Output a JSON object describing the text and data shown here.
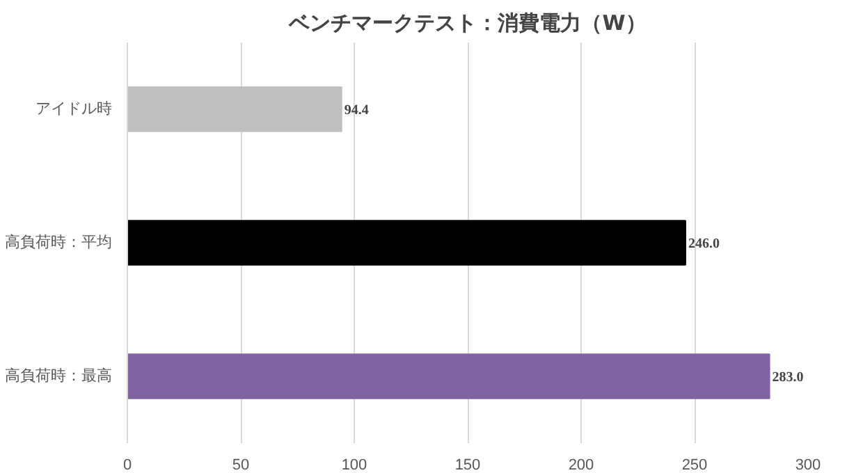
{
  "chart_data": {
    "type": "bar",
    "orientation": "horizontal",
    "title": "ベンチマークテスト：消費電力（W）",
    "categories": [
      "アイドル時",
      "高負荷時：平均",
      "高負荷時：最高"
    ],
    "values": [
      94.4,
      246.0,
      283.0
    ],
    "colors": [
      "#bfbfbf",
      "#000000",
      "#8064a2"
    ],
    "value_labels": [
      "94.4",
      "246.0",
      "283.0"
    ],
    "xlim": [
      0,
      300
    ],
    "xticks": [
      0,
      50,
      100,
      150,
      200,
      250,
      300
    ],
    "grid": "x"
  }
}
